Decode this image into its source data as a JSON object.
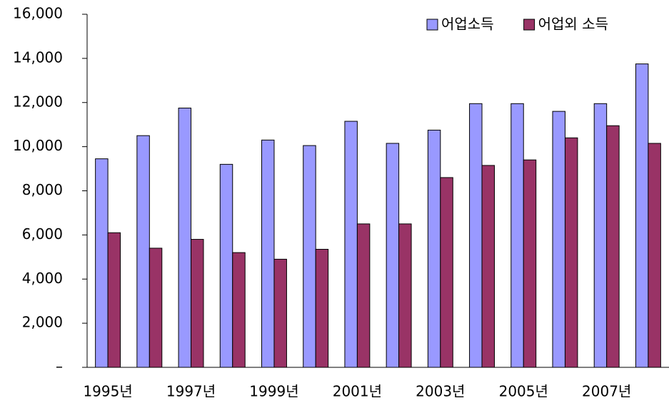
{
  "chart_data": {
    "type": "bar",
    "categories": [
      "1995년",
      null,
      "1997년",
      null,
      "1999년",
      null,
      "2001년",
      null,
      "2003년",
      null,
      "2005년",
      null,
      "2007년",
      null
    ],
    "series": [
      {
        "name": "어업소득",
        "color": "#9999ff",
        "values": [
          9450,
          10500,
          11750,
          9200,
          10300,
          10050,
          11150,
          10150,
          10750,
          11950,
          11950,
          11600,
          11950,
          13750
        ]
      },
      {
        "name": "어업외 소득",
        "color": "#993366",
        "values": [
          6100,
          5400,
          5800,
          5200,
          4900,
          5350,
          6500,
          6500,
          8600,
          9150,
          9400,
          10400,
          10950,
          10150
        ]
      }
    ],
    "ylim": [
      0,
      16000
    ],
    "yticks": [
      {
        "value": 0,
        "label": "–"
      },
      {
        "value": 2000,
        "label": "2,000"
      },
      {
        "value": 4000,
        "label": "4,000"
      },
      {
        "value": 6000,
        "label": "6,000"
      },
      {
        "value": 8000,
        "label": "8,000"
      },
      {
        "value": 10000,
        "label": "10,000"
      },
      {
        "value": 12000,
        "label": "12,000"
      },
      {
        "value": 14000,
        "label": "14,000"
      },
      {
        "value": 16000,
        "label": "16,000"
      }
    ],
    "grid": false,
    "legend": "top-right"
  }
}
